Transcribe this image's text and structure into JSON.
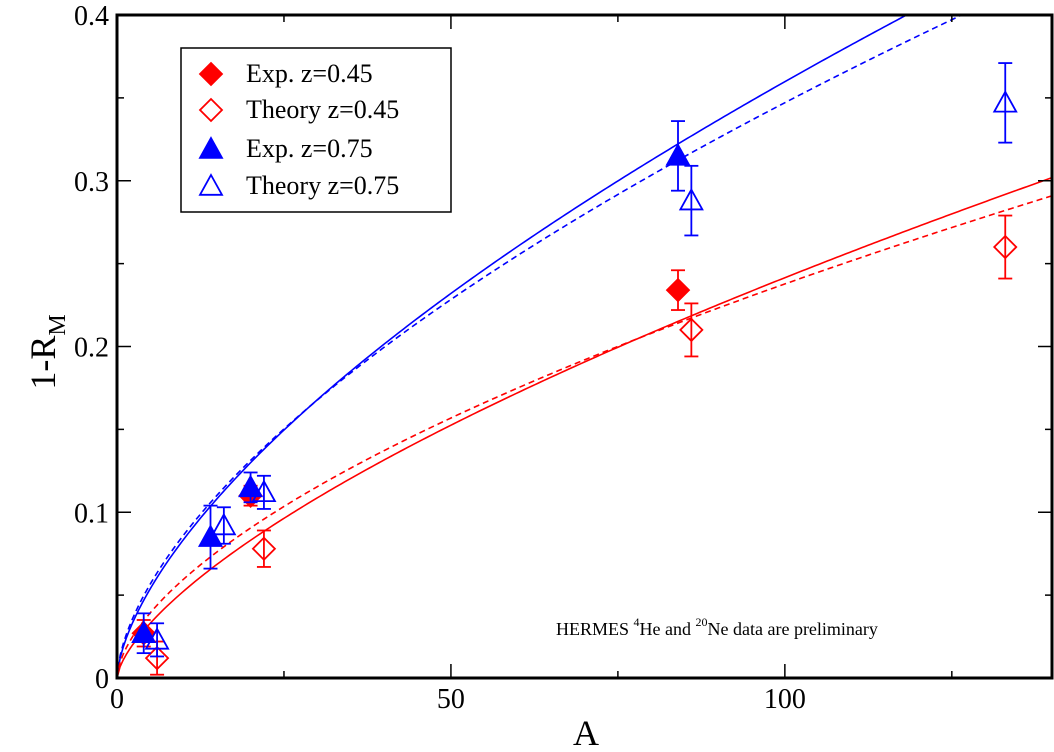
{
  "chart_data": {
    "type": "scatter",
    "xlabel": "A",
    "ylabel_main": "1-R",
    "ylabel_sub": "M",
    "xlim": [
      0,
      140
    ],
    "ylim": [
      0,
      0.4
    ],
    "x_ticks": [
      0,
      50,
      100
    ],
    "x_tick_labels": [
      "0",
      "50",
      "100"
    ],
    "y_ticks": [
      0,
      0.1,
      0.2,
      0.3,
      0.4
    ],
    "y_tick_labels": [
      "0",
      "0.1",
      "0.2",
      "0.3",
      "0.4"
    ],
    "grid": false,
    "legend_position": "top-left",
    "series": [
      {
        "name": "Exp. z=0.45",
        "marker": "diamond-filled",
        "color": "#ff0000",
        "points": [
          {
            "x": 4,
            "y": 0.027,
            "err": 0.008
          },
          {
            "x": 20,
            "y": 0.11,
            "err": 0.006
          },
          {
            "x": 84,
            "y": 0.234,
            "err": 0.012
          }
        ]
      },
      {
        "name": "Theory z=0.45",
        "marker": "diamond-open",
        "color": "#ff0000",
        "points": [
          {
            "x": 6,
            "y": 0.012,
            "err": 0.01
          },
          {
            "x": 22,
            "y": 0.078,
            "err": 0.011
          },
          {
            "x": 86,
            "y": 0.21,
            "err": 0.016
          },
          {
            "x": 133,
            "y": 0.26,
            "err": 0.019
          }
        ]
      },
      {
        "name": "Exp. z=0.75",
        "marker": "triangle-filled",
        "color": "#0000ff",
        "points": [
          {
            "x": 4,
            "y": 0.027,
            "err": 0.012
          },
          {
            "x": 14,
            "y": 0.085,
            "err": 0.019
          },
          {
            "x": 20,
            "y": 0.115,
            "err": 0.009
          },
          {
            "x": 84,
            "y": 0.315,
            "err": 0.021
          }
        ]
      },
      {
        "name": "Theory z=0.75",
        "marker": "triangle-open",
        "color": "#0000ff",
        "points": [
          {
            "x": 6,
            "y": 0.023,
            "err": 0.01
          },
          {
            "x": 16,
            "y": 0.092,
            "err": 0.011
          },
          {
            "x": 22,
            "y": 0.112,
            "err": 0.01
          },
          {
            "x": 86,
            "y": 0.288,
            "err": 0.021
          },
          {
            "x": 133,
            "y": 0.347,
            "err": 0.024
          }
        ]
      }
    ],
    "curves": [
      {
        "color": "#0000ff",
        "style": "solid",
        "coef": 0.0195,
        "exponent": 0.633
      },
      {
        "color": "#0000ff",
        "style": "dashed",
        "coef": 0.0215,
        "exponent": 0.604
      },
      {
        "color": "#ff0000",
        "style": "solid",
        "coef": 0.0114,
        "exponent": 0.663
      },
      {
        "color": "#ff0000",
        "style": "dashed",
        "coef": 0.015,
        "exponent": 0.6
      }
    ],
    "annotation": {
      "prefix": "HERMES ",
      "sup1": "4",
      "mid": "He and ",
      "sup2": "20",
      "suffix": "Ne data are preliminary"
    }
  }
}
